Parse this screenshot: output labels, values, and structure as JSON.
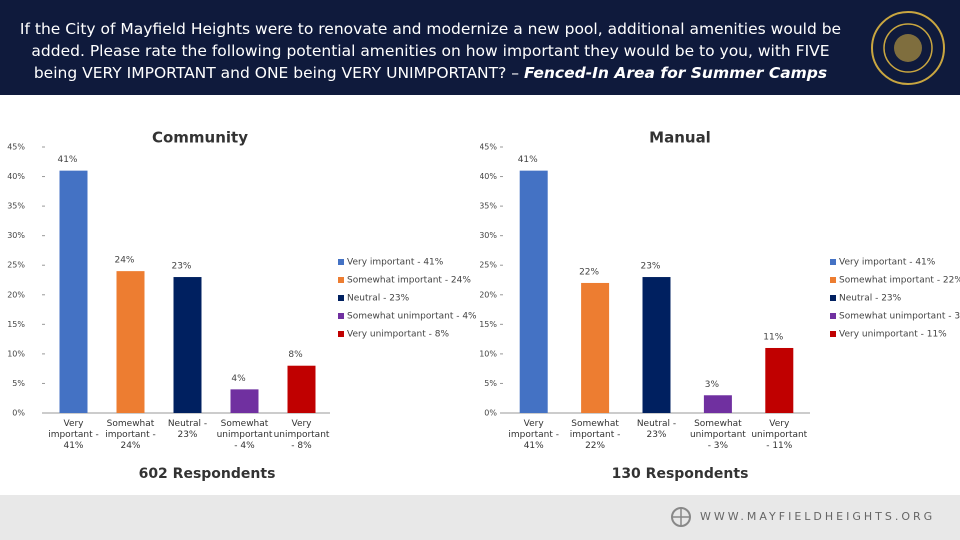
{
  "header": {
    "title": "If the City of Mayfield Heights were to renovate and modernize a new pool, additional amenities would be added. Please rate the following potential amenities on how important they would be to you, with FIVE being VERY IMPORTANT and ONE being VERY UNIMPORTANT? –",
    "subject": "Fenced-In Area for Summer Camps"
  },
  "chart_data": [
    {
      "type": "bar",
      "title": "Community",
      "categories": [
        "Very important - 41%",
        "Somewhat important - 24%",
        "Neutral - 23%",
        "Somewhat unimportant - 4%",
        "Very unimportant - 8%"
      ],
      "values": [
        41,
        24,
        23,
        4,
        8
      ],
      "value_labels": [
        "41%",
        "24%",
        "23%",
        "4%",
        "8%"
      ],
      "colors": [
        "#4472c4",
        "#ed7d31",
        "#002060",
        "#7030a0",
        "#c00000"
      ],
      "ylim": [
        0,
        45
      ],
      "yticks": [
        {
          "value": 0,
          "label": "0%"
        },
        {
          "value": 5,
          "label": "5%"
        },
        {
          "value": 10,
          "label": "10%"
        },
        {
          "value": 15,
          "label": "15%"
        },
        {
          "value": 20,
          "label": "20%"
        },
        {
          "value": 25,
          "label": "25%"
        },
        {
          "value": 30,
          "label": "30%"
        },
        {
          "value": 35,
          "label": "35%"
        },
        {
          "value": 40,
          "label": "40%"
        },
        {
          "value": 45,
          "label": "45%"
        }
      ],
      "legend": "right",
      "footnote": "602 Respondents"
    },
    {
      "type": "bar",
      "title": "Manual",
      "categories": [
        "Very important - 41%",
        "Somewhat important - 22%",
        "Neutral - 23%",
        "Somewhat unimportant - 3%",
        "Very unimportant - 11%"
      ],
      "values": [
        41,
        22,
        23,
        3,
        11
      ],
      "value_labels": [
        "41%",
        "22%",
        "23%",
        "3%",
        "11%"
      ],
      "colors": [
        "#4472c4",
        "#ed7d31",
        "#002060",
        "#7030a0",
        "#c00000"
      ],
      "ylim": [
        0,
        45
      ],
      "yticks": [
        {
          "value": 0,
          "label": "0%"
        },
        {
          "value": 5,
          "label": "5%"
        },
        {
          "value": 10,
          "label": "10%"
        },
        {
          "value": 15,
          "label": "15%"
        },
        {
          "value": 20,
          "label": "20%"
        },
        {
          "value": 25,
          "label": "25%"
        },
        {
          "value": 30,
          "label": "30%"
        },
        {
          "value": 35,
          "label": "35%"
        },
        {
          "value": 40,
          "label": "40%"
        },
        {
          "value": 45,
          "label": "45%"
        }
      ],
      "legend": "right",
      "footnote": "130 Respondents"
    }
  ],
  "footer": {
    "url": "WWW.MAYFIELDHEIGHTS.ORG"
  }
}
